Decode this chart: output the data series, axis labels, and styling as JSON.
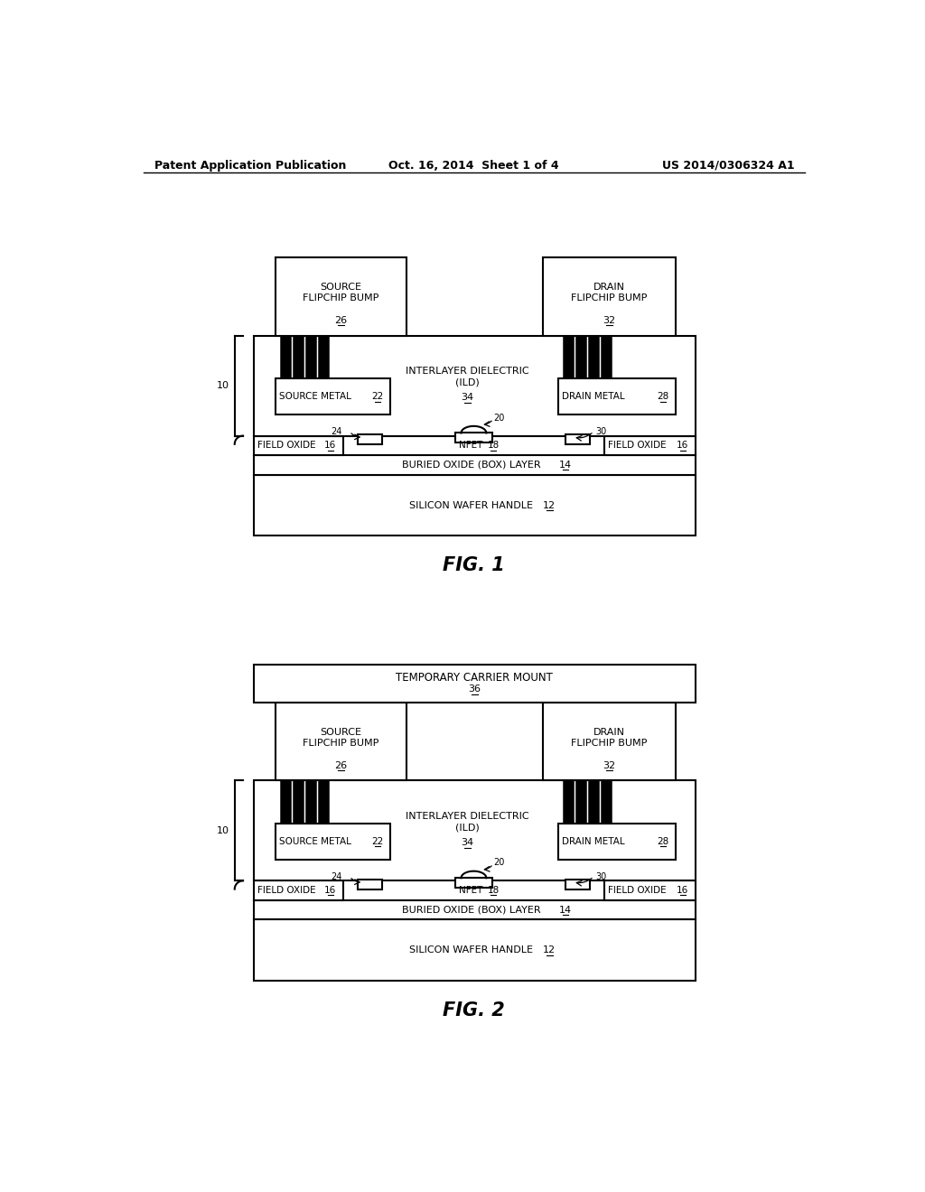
{
  "header_left": "Patent Application Publication",
  "header_center": "Oct. 16, 2014  Sheet 1 of 4",
  "header_right": "US 2014/0306324 A1",
  "fig1_caption": "FIG. 1",
  "fig2_caption": "FIG. 2",
  "background": "#ffffff",
  "line_color": "#000000",
  "font_size_header": 9,
  "font_size_label": 8,
  "font_size_caption": 15
}
